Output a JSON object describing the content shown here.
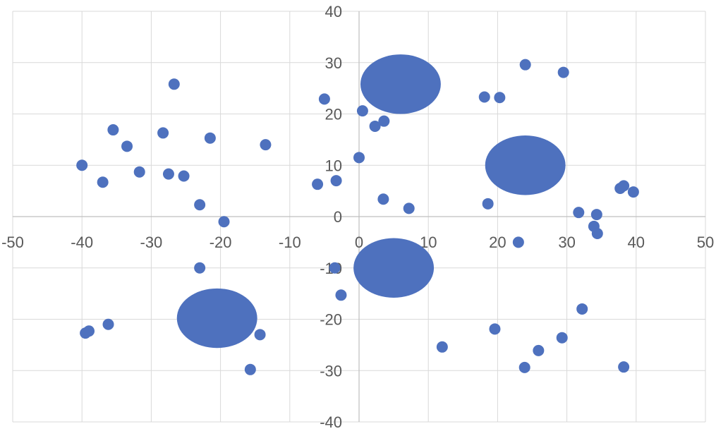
{
  "chart_data": {
    "type": "scatter",
    "title": "",
    "xlabel": "",
    "ylabel": "",
    "xlim": [
      -50,
      50
    ],
    "ylim": [
      -40,
      40
    ],
    "xticks": [
      -50,
      -40,
      -30,
      -20,
      -10,
      0,
      10,
      20,
      30,
      40,
      50
    ],
    "yticks": [
      -40,
      -30,
      -20,
      -10,
      0,
      10,
      20,
      30,
      40
    ],
    "grid": true,
    "legend": "none",
    "marker_color": "#4e71be",
    "points": [
      [
        -40,
        10
      ],
      [
        -37,
        6.7
      ],
      [
        -35.5,
        16.9
      ],
      [
        -33.5,
        13.7
      ],
      [
        -31.7,
        8.7
      ],
      [
        -28.3,
        16.3
      ],
      [
        -27.5,
        8.3
      ],
      [
        -26.7,
        25.8
      ],
      [
        -25.3,
        7.9
      ],
      [
        -21.5,
        15.3
      ],
      [
        -23,
        2.3
      ],
      [
        -19.5,
        -1
      ],
      [
        -13.5,
        14
      ],
      [
        -5,
        22.9
      ],
      [
        -6,
        6.3
      ],
      [
        -3.3,
        7
      ],
      [
        0,
        11.5
      ],
      [
        0.5,
        20.6
      ],
      [
        2.3,
        17.6
      ],
      [
        3.6,
        18.6
      ],
      [
        3.5,
        3.4
      ],
      [
        7.2,
        1.6
      ],
      [
        18.1,
        23.3
      ],
      [
        20.3,
        23.2
      ],
      [
        24,
        29.6
      ],
      [
        29.5,
        28.1
      ],
      [
        18.6,
        2.5
      ],
      [
        31.7,
        0.8
      ],
      [
        34.3,
        0.4
      ],
      [
        33.9,
        -1.9
      ],
      [
        34.4,
        -3.3
      ],
      [
        37.7,
        5.5
      ],
      [
        38.2,
        6
      ],
      [
        39.6,
        4.8
      ],
      [
        23,
        -5
      ],
      [
        -23,
        -10
      ],
      [
        -3.5,
        -10
      ],
      [
        -2.6,
        -15.3
      ],
      [
        -39.5,
        -22.7
      ],
      [
        -39,
        -22.3
      ],
      [
        -36.2,
        -21
      ],
      [
        -14.3,
        -23
      ],
      [
        -15.7,
        -29.8
      ],
      [
        12,
        -25.4
      ],
      [
        19.6,
        -21.9
      ],
      [
        23.9,
        -29.4
      ],
      [
        25.9,
        -26.1
      ],
      [
        29.3,
        -23.6
      ],
      [
        32.2,
        -18
      ],
      [
        38.2,
        -29.3
      ]
    ],
    "clusters": [
      {
        "cx": 6,
        "cy": 25.8,
        "rx": 5.8,
        "ry": 5.8
      },
      {
        "cx": 24,
        "cy": 10,
        "rx": 5.8,
        "ry": 5.8
      },
      {
        "cx": 5,
        "cy": -10,
        "rx": 5.8,
        "ry": 5.8
      },
      {
        "cx": -20.5,
        "cy": -19.8,
        "rx": 5.8,
        "ry": 5.8
      }
    ]
  }
}
